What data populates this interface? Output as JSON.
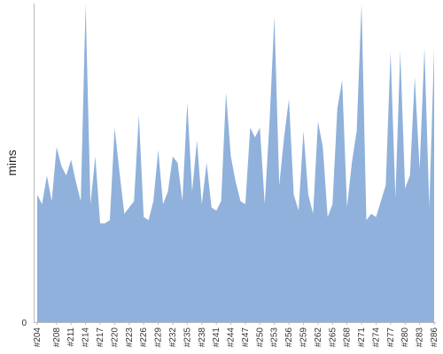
{
  "chart_data": {
    "type": "area",
    "title": "",
    "xlabel": "",
    "ylabel": "mins",
    "ylim": [
      0,
      100
    ],
    "grid": false,
    "legend": "none",
    "color": "#8fb1db",
    "y_tick_labels": [
      "0"
    ],
    "categories": [
      "#204",
      "#205",
      "#206",
      "#207",
      "#208",
      "#209",
      "#210",
      "#211",
      "#212",
      "#213",
      "#214",
      "#215",
      "#216",
      "#217",
      "#218",
      "#219",
      "#220",
      "#221",
      "#222",
      "#223",
      "#224",
      "#225",
      "#226",
      "#227",
      "#228",
      "#229",
      "#230",
      "#231",
      "#232",
      "#233",
      "#234",
      "#235",
      "#236",
      "#237",
      "#238",
      "#239",
      "#240",
      "#241",
      "#242",
      "#243",
      "#244",
      "#245",
      "#246",
      "#247",
      "#248",
      "#249",
      "#250",
      "#251",
      "#252",
      "#253",
      "#254",
      "#255",
      "#256",
      "#257",
      "#258",
      "#259",
      "#260",
      "#261",
      "#262",
      "#263",
      "#264",
      "#265",
      "#266",
      "#267",
      "#268",
      "#269",
      "#270",
      "#271",
      "#272",
      "#273",
      "#274",
      "#275",
      "#276",
      "#277",
      "#278",
      "#279",
      "#280",
      "#281",
      "#282",
      "#283",
      "#284",
      "#285",
      "#286"
    ],
    "visible_tick_labels": [
      "#204",
      "#208",
      "#211",
      "#214",
      "#217",
      "#220",
      "#223",
      "#226",
      "#229",
      "#232",
      "#235",
      "#238",
      "#241",
      "#244",
      "#247",
      "#250",
      "#253",
      "#256",
      "#259",
      "#262",
      "#265",
      "#268",
      "#271",
      "#274",
      "#277",
      "#280",
      "#283",
      "#286"
    ],
    "values": [
      40,
      37,
      46,
      38,
      55,
      49,
      46,
      51,
      44,
      38,
      100,
      37,
      52,
      31,
      31,
      32,
      61,
      47,
      34,
      36,
      38,
      65,
      33,
      32,
      38,
      54,
      37,
      41,
      52,
      50,
      38,
      69,
      41,
      57,
      37,
      50,
      36,
      35,
      38,
      72,
      52,
      44,
      38,
      37,
      61,
      58,
      61,
      37,
      63,
      96,
      43,
      58,
      70,
      40,
      35,
      60,
      40,
      34,
      63,
      55,
      33,
      37,
      67,
      76,
      36,
      50,
      60,
      100,
      32,
      34,
      33,
      38,
      43,
      85,
      39,
      85,
      42,
      46,
      77,
      48,
      86,
      36,
      86
    ]
  }
}
